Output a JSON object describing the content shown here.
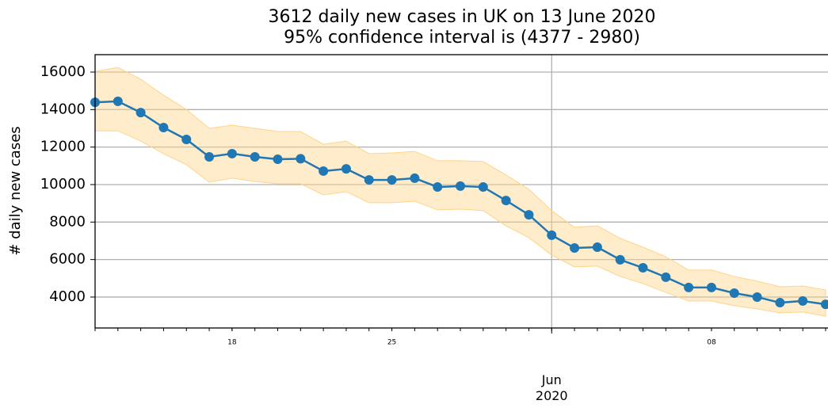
{
  "chart_data": {
    "type": "line",
    "title": "3612 daily new cases in UK on 13 June 2020",
    "subtitle": "95% confidence interval is (4377 - 2980)",
    "y_label": "# daily new cases",
    "x": [
      "2020-05-12",
      "2020-05-13",
      "2020-05-14",
      "2020-05-15",
      "2020-05-16",
      "2020-05-17",
      "2020-05-18",
      "2020-05-19",
      "2020-05-20",
      "2020-05-21",
      "2020-05-22",
      "2020-05-23",
      "2020-05-24",
      "2020-05-25",
      "2020-05-26",
      "2020-05-27",
      "2020-05-28",
      "2020-05-29",
      "2020-05-30",
      "2020-05-31",
      "2020-06-01",
      "2020-06-02",
      "2020-06-03",
      "2020-06-04",
      "2020-06-05",
      "2020-06-06",
      "2020-06-07",
      "2020-06-08",
      "2020-06-09",
      "2020-06-10",
      "2020-06-11",
      "2020-06-12",
      "2020-06-13"
    ],
    "values": [
      14390,
      14440,
      13840,
      13040,
      12410,
      11480,
      11650,
      11480,
      11350,
      11380,
      10720,
      10840,
      10250,
      10250,
      10340,
      9870,
      9920,
      9870,
      9150,
      8390,
      7300,
      6620,
      6660,
      5990,
      5560,
      5060,
      4510,
      4510,
      4210,
      4000,
      3700,
      3790,
      3612
    ],
    "upper": [
      16040,
      16250,
      15620,
      14770,
      14010,
      13000,
      13170,
      13000,
      12830,
      12830,
      12150,
      12320,
      11650,
      11690,
      11770,
      11270,
      11270,
      11230,
      10510,
      9750,
      8610,
      7720,
      7800,
      7130,
      6660,
      6150,
      5440,
      5440,
      5100,
      4850,
      4550,
      4590,
      4377
    ],
    "lower": [
      12870,
      12870,
      12320,
      11650,
      11060,
      10130,
      10340,
      10170,
      10040,
      10040,
      9450,
      9620,
      9030,
      9030,
      9110,
      8650,
      8690,
      8610,
      7800,
      7170,
      6240,
      5610,
      5650,
      5100,
      4720,
      4250,
      3790,
      3790,
      3540,
      3370,
      3160,
      3200,
      2980
    ],
    "color": "#1f77b4",
    "band_color": "#ffd48a",
    "xlim": [
      "2020-05-12",
      "2020-06-13"
    ],
    "xticks": [
      {
        "value": "2020-05-18",
        "label": "18"
      },
      {
        "value": "2020-05-25",
        "label": "25"
      },
      {
        "value": "2020-06-08",
        "label": "08"
      }
    ],
    "xticks_major": [
      {
        "value": "2020-06-01",
        "label": "Jun\n2020"
      }
    ],
    "ylim": [
      2350,
      16930
    ],
    "yticks": [
      4000,
      6000,
      8000,
      10000,
      12000,
      14000,
      16000
    ],
    "grid": true
  }
}
